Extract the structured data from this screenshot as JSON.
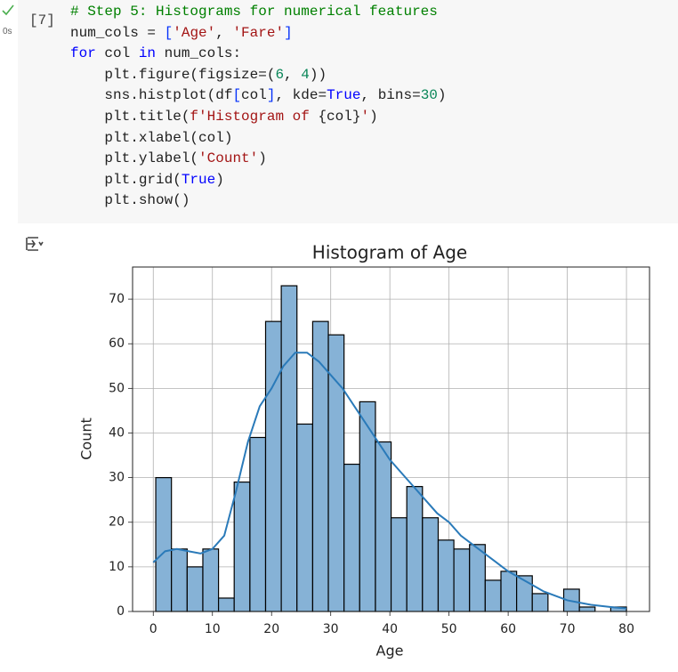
{
  "cell": {
    "status": "0s",
    "exec_count": "[7]",
    "code": [
      [
        {
          "text": "# Step 5: Histograms for numerical features",
          "color": "#008000"
        }
      ],
      [
        {
          "text": "num_cols = ",
          "color": "#212121"
        },
        {
          "text": "[",
          "color": "#0431fa"
        },
        {
          "text": "'Age'",
          "color": "#a31515"
        },
        {
          "text": ", ",
          "color": "#212121"
        },
        {
          "text": "'Fare'",
          "color": "#a31515"
        },
        {
          "text": "]",
          "color": "#0431fa"
        }
      ],
      [
        {
          "text": "for",
          "color": "#0000ff"
        },
        {
          "text": " col ",
          "color": "#212121"
        },
        {
          "text": "in",
          "color": "#0000ff"
        },
        {
          "text": " num_cols:",
          "color": "#212121"
        }
      ],
      [
        {
          "text": "    plt.figure(figsize=(",
          "color": "#212121"
        },
        {
          "text": "6",
          "color": "#098658"
        },
        {
          "text": ", ",
          "color": "#212121"
        },
        {
          "text": "4",
          "color": "#098658"
        },
        {
          "text": "))",
          "color": "#212121"
        }
      ],
      [
        {
          "text": "    sns.histplot(df",
          "color": "#212121"
        },
        {
          "text": "[",
          "color": "#0431fa"
        },
        {
          "text": "col",
          "color": "#212121"
        },
        {
          "text": "]",
          "color": "#0431fa"
        },
        {
          "text": ", kde=",
          "color": "#212121"
        },
        {
          "text": "True",
          "color": "#0000ff"
        },
        {
          "text": ", bins=",
          "color": "#212121"
        },
        {
          "text": "30",
          "color": "#098658"
        },
        {
          "text": ")",
          "color": "#212121"
        }
      ],
      [
        {
          "text": "    plt.title(",
          "color": "#212121"
        },
        {
          "text": "f'Histogram of ",
          "color": "#a31515"
        },
        {
          "text": "{col}",
          "color": "#212121"
        },
        {
          "text": "'",
          "color": "#a31515"
        },
        {
          "text": ")",
          "color": "#212121"
        }
      ],
      [
        {
          "text": "    plt.xlabel(col)",
          "color": "#212121"
        }
      ],
      [
        {
          "text": "    plt.ylabel(",
          "color": "#212121"
        },
        {
          "text": "'Count'",
          "color": "#a31515"
        },
        {
          "text": ")",
          "color": "#212121"
        }
      ],
      [
        {
          "text": "    plt.grid(",
          "color": "#212121"
        },
        {
          "text": "True",
          "color": "#0000ff"
        },
        {
          "text": ")",
          "color": "#212121"
        }
      ],
      [
        {
          "text": "    plt.show()",
          "color": "#212121"
        }
      ]
    ]
  },
  "chart_data": {
    "type": "histogram",
    "title": "Histogram of Age",
    "x_label": "Age",
    "y_label": "Count",
    "bins": [
      0.42,
      3.07,
      5.73,
      8.38,
      11.03,
      13.68,
      16.34,
      18.99,
      21.64,
      24.29,
      26.95,
      29.6,
      32.25,
      34.9,
      37.56,
      40.21,
      42.86,
      45.51,
      48.17,
      50.82,
      53.47,
      56.12,
      58.78,
      61.43,
      64.08,
      66.73,
      69.39,
      72.04,
      74.69,
      77.34,
      80.0
    ],
    "values": [
      30,
      14,
      10,
      14,
      3,
      29,
      39,
      65,
      73,
      42,
      65,
      62,
      33,
      47,
      38,
      21,
      28,
      21,
      16,
      14,
      15,
      7,
      9,
      8,
      4,
      0,
      5,
      1,
      0,
      1
    ],
    "color": "#86b2d6",
    "edge_color": "#000000",
    "kde": {
      "color": "#2a7ab9",
      "x": [
        0,
        2,
        4,
        6,
        8,
        10,
        12,
        14,
        16,
        18,
        20,
        22,
        24,
        26,
        28,
        30,
        32,
        34,
        36,
        38,
        40,
        42,
        44,
        46,
        48,
        50,
        52,
        54,
        56,
        58,
        60,
        62,
        64,
        66,
        68,
        70,
        72,
        74,
        76,
        78,
        80
      ],
      "values": [
        11,
        13.5,
        14,
        13.5,
        13,
        14,
        17,
        27,
        38,
        46,
        50,
        55,
        58,
        58,
        56,
        53,
        50,
        46,
        42,
        38,
        34,
        31,
        28,
        25,
        22,
        20,
        17,
        15,
        13,
        11,
        9,
        7.5,
        6,
        4.5,
        3.5,
        2.5,
        2,
        1.5,
        1.2,
        0.9,
        0.7
      ]
    },
    "xlim": [
      -3.5,
      83.9
    ],
    "ylim": [
      0,
      77.2
    ],
    "xticks": [
      0,
      10,
      20,
      30,
      40,
      50,
      60,
      70,
      80
    ],
    "yticks": [
      0,
      10,
      20,
      30,
      40,
      50,
      60,
      70
    ],
    "grid": true
  }
}
